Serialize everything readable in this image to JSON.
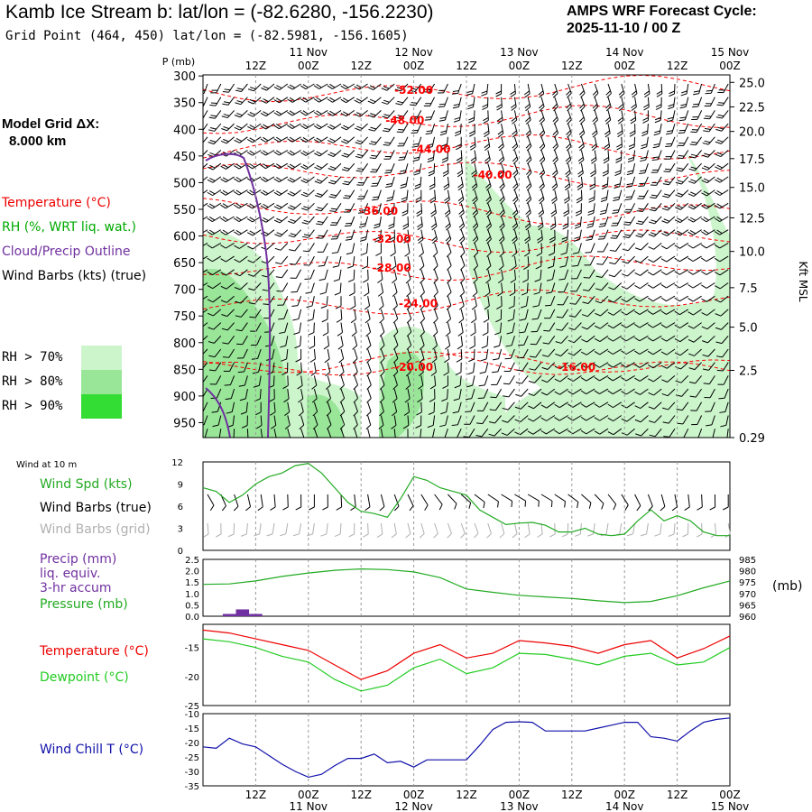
{
  "header": {
    "title": "Kamb Ice Stream b:  lat/lon = (-82.6280, -156.2230)",
    "subtitle": "Grid Point (464, 450) lat/lon = (-82.5981, -156.1605)",
    "cycle_line1": "AMPS WRF Forecast Cycle:",
    "cycle_line2": "2025-11-10 / 00  Z"
  },
  "sidebar": {
    "grid_dx_line1": "Model Grid ΔX:",
    "grid_dx_line2": "8.000 km",
    "legend_temperature": "Temperature (°C)",
    "legend_rh": "RH (%, WRT liq. wat.)",
    "legend_cloud": "Cloud/Precip Outline",
    "legend_wind": "Wind Barbs (kts) (true)",
    "rh_70": "RH > 70%",
    "rh_80": "RH > 80%",
    "rh_90": "RH > 90%"
  },
  "colors": {
    "temperature": "#ff0000",
    "rh_label": "#00aa00",
    "cloud": "#7030a0",
    "rh70": "#ccf5cc",
    "rh80": "#99e699",
    "rh90": "#33dd33",
    "wind_chill": "#1010aa",
    "grid_barbs": "#b0b0b0"
  },
  "chart_data": [
    {
      "type": "heatmap",
      "name": "cross-section",
      "ylabel_left": "P (mb)",
      "ylabel_right": "Kft MSL",
      "pressure_ticks": [
        300,
        350,
        400,
        450,
        500,
        550,
        600,
        650,
        700,
        750,
        800,
        850,
        900,
        950
      ],
      "height_ticks": [
        "25.0",
        "22.5",
        "20.0",
        "17.5",
        "15.0",
        "12.5",
        "10.0",
        "7.5",
        "5.0",
        "2.5",
        "0.29"
      ],
      "height_tick_pressures": [
        312,
        358,
        404,
        455,
        509,
        566,
        629,
        697,
        771,
        852,
        978
      ],
      "ylim_mb": [
        298,
        978
      ],
      "time_top_labels": [
        {
          "line1": "",
          "line2": "12Z",
          "hour": 12
        },
        {
          "line1": "11 Nov",
          "line2": "00Z",
          "hour": 24
        },
        {
          "line1": "",
          "line2": "12Z",
          "hour": 36
        },
        {
          "line1": "12 Nov",
          "line2": "00Z",
          "hour": 48
        },
        {
          "line1": "",
          "line2": "12Z",
          "hour": 60
        },
        {
          "line1": "13 Nov",
          "line2": "00Z",
          "hour": 72
        },
        {
          "line1": "",
          "line2": "12Z",
          "hour": 84
        },
        {
          "line1": "14 Nov",
          "line2": "00Z",
          "hour": 96
        },
        {
          "line1": "",
          "line2": "12Z",
          "hour": 108
        },
        {
          "line1": "15 Nov",
          "line2": "00Z",
          "hour": 120
        }
      ],
      "xlim_hours": [
        0,
        120
      ],
      "isotherms": [
        {
          "label": "-52.00",
          "hour": 48,
          "p": 325
        },
        {
          "label": "-48.00",
          "hour": 46,
          "p": 382
        },
        {
          "label": "-44.00",
          "hour": 52,
          "p": 436
        },
        {
          "label": "-40.00",
          "hour": 66,
          "p": 484
        },
        {
          "label": "-36.00",
          "hour": 40,
          "p": 552
        },
        {
          "label": "-32.00",
          "hour": 43,
          "p": 604
        },
        {
          "label": "-28.00",
          "hour": 43,
          "p": 658
        },
        {
          "label": "-24.00",
          "hour": 49,
          "p": 725
        },
        {
          "label": "-20.00",
          "hour": 48,
          "p": 844
        },
        {
          "label": "-16.00",
          "hour": 85,
          "p": 844
        }
      ]
    },
    {
      "type": "line",
      "name": "wind-speed",
      "panel_title": "Wind at 10 m",
      "label_spd": "Wind Spd (kts)",
      "label_barbs": "Wind Barbs (true)",
      "label_grid": "Wind Barbs (grid)",
      "yticks": [
        0,
        3,
        6,
        9,
        12
      ],
      "ylim": [
        0,
        12
      ],
      "series": [
        {
          "name": "Wind Spd (kts)",
          "color": "#22aa22",
          "x": [
            0,
            3,
            6,
            9,
            12,
            15,
            18,
            21,
            24,
            27,
            30,
            33,
            36,
            39,
            42,
            45,
            48,
            51,
            54,
            57,
            60,
            63,
            66,
            69,
            72,
            75,
            78,
            81,
            84,
            87,
            90,
            93,
            96,
            99,
            102,
            105,
            108,
            111,
            114,
            117,
            120
          ],
          "values": [
            8.5,
            8,
            6.5,
            7.5,
            9,
            10,
            10.5,
            11.5,
            11.8,
            10.5,
            8.5,
            6.5,
            5.3,
            5.0,
            4.5,
            7.0,
            10.0,
            9.5,
            8.5,
            8.0,
            7.5,
            5.5,
            4.5,
            3.5,
            3.7,
            3.8,
            3.4,
            2.5,
            2.5,
            3.0,
            2.2,
            2.0,
            2.2,
            4.0,
            5.5,
            4.0,
            4.7,
            4.0,
            2.5,
            2.0,
            2.0
          ]
        }
      ]
    },
    {
      "type": "line",
      "name": "precip-pressure",
      "label_precip": "Precip (mm)",
      "label_liq": "liq. equiv.",
      "label_accum": "3-hr accum",
      "label_pressure": "Pressure (mb)",
      "ylabel_right": "(mb)",
      "yticks_left": [
        "0.0",
        "0.5",
        "1.0",
        "1.5",
        "2.0",
        "2.5"
      ],
      "yticks_right": [
        "960",
        "965",
        "970",
        "975",
        "980",
        "985"
      ],
      "ylim_left": [
        0,
        2.5
      ],
      "ylim_right": [
        960,
        985
      ],
      "precip_bars": [
        {
          "hour": 6,
          "mm": 0.1
        },
        {
          "hour": 9,
          "mm": 0.3
        },
        {
          "hour": 12,
          "mm": 0.1
        }
      ],
      "series": [
        {
          "name": "Pressure (mb)",
          "color": "#22aa22",
          "x": [
            0,
            6,
            12,
            18,
            24,
            30,
            36,
            42,
            48,
            54,
            60,
            66,
            72,
            78,
            84,
            90,
            96,
            102,
            108,
            114,
            120
          ],
          "values": [
            974,
            974.2,
            975.5,
            977.5,
            979,
            980.2,
            980.8,
            980.5,
            979.5,
            977,
            972,
            970.5,
            969.2,
            968.5,
            967.8,
            966.8,
            966,
            966.5,
            969,
            972.5,
            975.5
          ]
        }
      ]
    },
    {
      "type": "line",
      "name": "temperature-dewpoint",
      "label_temp": "Temperature (°C)",
      "label_dew": "Dewpoint (°C)",
      "yticks": [
        -25,
        -20,
        -15
      ],
      "ylim": [
        -25,
        -11
      ],
      "series": [
        {
          "name": "Temperature (°C)",
          "color": "#ee0000",
          "x": [
            0,
            6,
            12,
            18,
            24,
            30,
            36,
            42,
            48,
            54,
            60,
            66,
            72,
            78,
            84,
            90,
            96,
            102,
            108,
            114,
            120
          ],
          "values": [
            -12,
            -12.5,
            -13.5,
            -14.5,
            -15.5,
            -18,
            -20.5,
            -19,
            -16,
            -14.5,
            -16.8,
            -16,
            -13.8,
            -14.2,
            -14.8,
            -16,
            -14.5,
            -13.8,
            -16.8,
            -15.2,
            -13
          ]
        },
        {
          "name": "Dewpoint (°C)",
          "color": "#22cc22",
          "x": [
            0,
            6,
            12,
            18,
            24,
            30,
            36,
            42,
            48,
            54,
            60,
            66,
            72,
            78,
            84,
            90,
            96,
            102,
            108,
            114,
            120
          ],
          "values": [
            -13.5,
            -14,
            -15,
            -16.5,
            -17.5,
            -20.5,
            -22.5,
            -21.5,
            -18.5,
            -17,
            -19.5,
            -18.5,
            -16,
            -16.2,
            -17,
            -18,
            -16.5,
            -16,
            -18,
            -17.5,
            -15
          ]
        }
      ]
    },
    {
      "type": "line",
      "name": "wind-chill",
      "label": "Wind Chill T (°C)",
      "yticks": [
        -35,
        -30,
        -25,
        -20,
        -15,
        -10
      ],
      "ylim": [
        -35,
        -10
      ],
      "series": [
        {
          "name": "Wind Chill T (°C)",
          "color": "#1010aa",
          "x": [
            0,
            3,
            6,
            9,
            12,
            15,
            18,
            21,
            24,
            27,
            30,
            33,
            36,
            39,
            42,
            45,
            48,
            51,
            54,
            57,
            60,
            63,
            66,
            69,
            72,
            75,
            78,
            81,
            84,
            87,
            90,
            93,
            96,
            99,
            102,
            105,
            108,
            111,
            114,
            117,
            120
          ],
          "values": [
            -21.5,
            -22,
            -18.5,
            -20.5,
            -21.5,
            -24.5,
            -27.5,
            -30,
            -32,
            -31,
            -28,
            -25.5,
            -25.5,
            -24,
            -27,
            -26.5,
            -28.5,
            -26,
            -26,
            -26,
            -26,
            -21,
            -15.5,
            -13,
            -12.8,
            -13,
            -16,
            -16,
            -16,
            -16,
            -15,
            -14,
            -13,
            -13,
            -18,
            -18.5,
            -19.5,
            -16,
            -13,
            -12,
            -11.5
          ]
        }
      ]
    }
  ],
  "bottom_axis": {
    "labels": [
      {
        "line1": "12Z",
        "line2": "",
        "hour": 12
      },
      {
        "line1": "00Z",
        "line2": "11 Nov",
        "hour": 24
      },
      {
        "line1": "12Z",
        "line2": "",
        "hour": 36
      },
      {
        "line1": "00Z",
        "line2": "12 Nov",
        "hour": 48
      },
      {
        "line1": "12Z",
        "line2": "",
        "hour": 60
      },
      {
        "line1": "00Z",
        "line2": "13 Nov",
        "hour": 72
      },
      {
        "line1": "12Z",
        "line2": "",
        "hour": 84
      },
      {
        "line1": "00Z",
        "line2": "14 Nov",
        "hour": 96
      },
      {
        "line1": "12Z",
        "line2": "",
        "hour": 108
      },
      {
        "line1": "00Z",
        "line2": "15 Nov",
        "hour": 120
      }
    ]
  }
}
